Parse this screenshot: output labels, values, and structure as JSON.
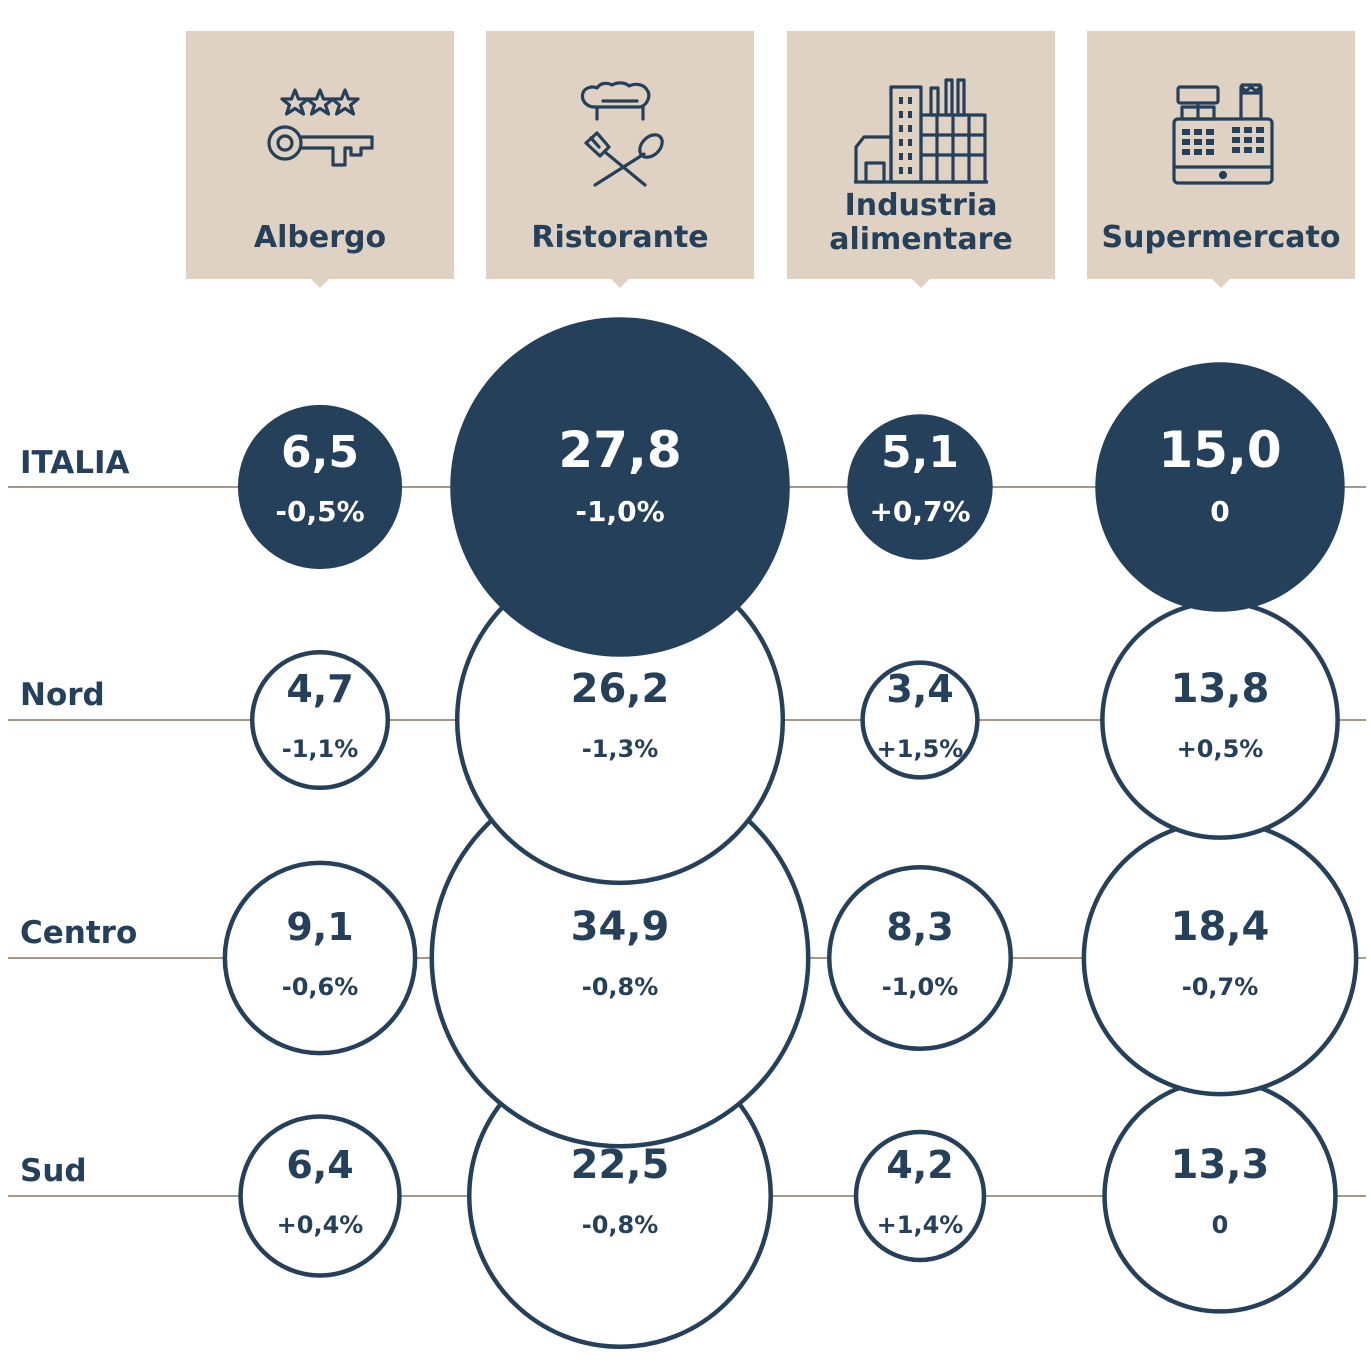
{
  "chart_data": {
    "type": "bubble",
    "categories": [
      "Albergo",
      "Ristorante",
      "Industria alimentare",
      "Supermercato"
    ],
    "rows": [
      {
        "name": "ITALIA",
        "values": [
          6.5,
          27.8,
          5.1,
          15.0
        ],
        "value_labels": [
          "6,5",
          "27,8",
          "5,1",
          "15,0"
        ],
        "changes": [
          "-0,5%",
          "-1,0%",
          "+0,7%",
          "0"
        ],
        "highlight": true
      },
      {
        "name": "Nord",
        "values": [
          4.7,
          26.2,
          3.4,
          13.8
        ],
        "value_labels": [
          "4,7",
          "26,2",
          "3,4",
          "13,8"
        ],
        "changes": [
          "-1,1%",
          "-1,3%",
          "+1,5%",
          "+0,5%"
        ],
        "highlight": false
      },
      {
        "name": "Centro",
        "values": [
          9.1,
          34.9,
          8.3,
          18.4
        ],
        "value_labels": [
          "9,1",
          "34,9",
          "8,3",
          "18,4"
        ],
        "changes": [
          "-0,6%",
          "-0,8%",
          "-1,0%",
          "-0,7%"
        ],
        "highlight": false
      },
      {
        "name": "Sud",
        "values": [
          6.4,
          22.5,
          4.2,
          13.3
        ],
        "value_labels": [
          "6,4",
          "22,5",
          "4,2",
          "13,3"
        ],
        "changes": [
          "+0,4%",
          "-0,8%",
          "+1,4%",
          "0"
        ],
        "highlight": false
      }
    ],
    "size_encoding": "bubble area proportional to value"
  },
  "columns": [
    {
      "label_lines": [
        "Albergo"
      ],
      "icon": "hotel-key-icon"
    },
    {
      "label_lines": [
        "Ristorante"
      ],
      "icon": "chef-hat-utensils-icon"
    },
    {
      "label_lines": [
        "Industria",
        "alimentare"
      ],
      "icon": "factory-icon"
    },
    {
      "label_lines": [
        "Supermercato"
      ],
      "icon": "cash-register-icon"
    }
  ],
  "colors": {
    "dark": "#25405a",
    "card": "#e0d2c3",
    "line": "#a89888",
    "white": "#ffffff"
  }
}
